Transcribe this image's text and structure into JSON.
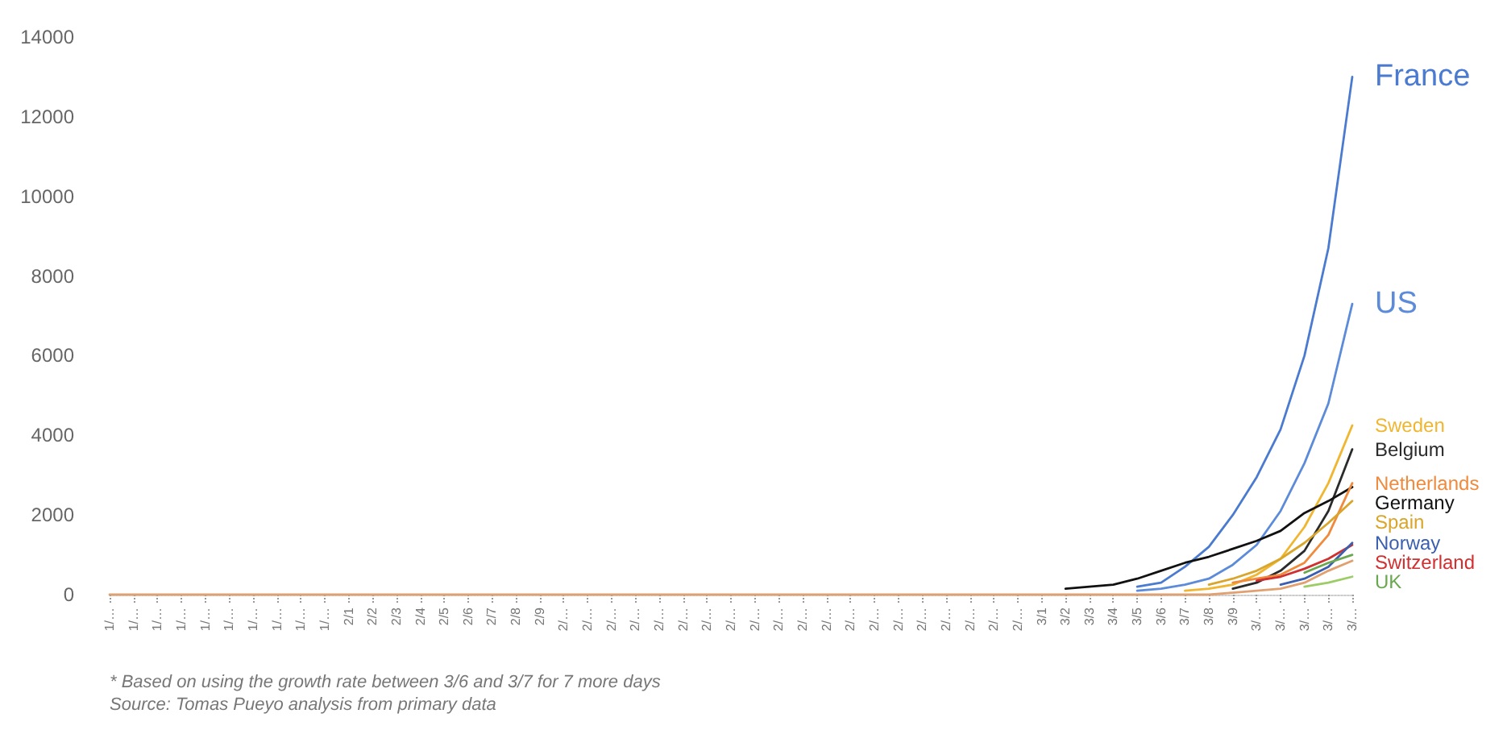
{
  "chart_data": {
    "type": "line",
    "categories": [
      "1/…",
      "1/…",
      "1/…",
      "1/…",
      "1/…",
      "1/…",
      "1/…",
      "1/…",
      "1/…",
      "1/…",
      "2/1",
      "2/2",
      "2/3",
      "2/4",
      "2/5",
      "2/6",
      "2/7",
      "2/8",
      "2/9",
      "2/…",
      "2/…",
      "2/…",
      "2/…",
      "2/…",
      "2/…",
      "2/…",
      "2/…",
      "2/…",
      "2/…",
      "2/…",
      "2/…",
      "2/…",
      "2/…",
      "2/…",
      "2/…",
      "2/…",
      "2/…",
      "2/…",
      "2/…",
      "3/1",
      "3/2",
      "3/3",
      "3/4",
      "3/5",
      "3/6",
      "3/7",
      "3/8",
      "3/9",
      "3/…",
      "3/…",
      "3/…",
      "3/…",
      "3/…"
    ],
    "ylim": [
      0,
      14000
    ],
    "yticks": [
      0,
      2000,
      4000,
      6000,
      8000,
      10000,
      12000,
      14000
    ],
    "grid": false,
    "legend": false,
    "marker": "none",
    "line_style": "solid",
    "annotations": [
      "* Based on using the growth rate between 3/6 and 3/7 for 7 more days",
      "Source: Tomas Pueyo analysis from primary data"
    ],
    "series": [
      {
        "name": "France",
        "color": "#4a7bd0",
        "values": [
          null,
          null,
          null,
          null,
          null,
          null,
          null,
          null,
          null,
          null,
          null,
          null,
          null,
          null,
          null,
          null,
          null,
          null,
          null,
          null,
          null,
          null,
          null,
          null,
          null,
          null,
          null,
          null,
          null,
          null,
          null,
          null,
          null,
          null,
          null,
          null,
          null,
          null,
          null,
          null,
          null,
          null,
          null,
          200,
          300,
          700,
          1200,
          2000,
          2950,
          4150,
          6000,
          8700,
          13000
        ]
      },
      {
        "name": "US",
        "color": "#5b8bd9",
        "values": [
          null,
          null,
          null,
          null,
          null,
          null,
          null,
          null,
          null,
          null,
          null,
          null,
          null,
          null,
          null,
          null,
          null,
          null,
          null,
          null,
          null,
          null,
          null,
          null,
          null,
          null,
          null,
          null,
          null,
          null,
          null,
          null,
          null,
          null,
          null,
          null,
          null,
          null,
          null,
          null,
          null,
          null,
          null,
          100,
          150,
          250,
          400,
          750,
          1250,
          2100,
          3300,
          4800,
          7300
        ]
      },
      {
        "name": "Sweden",
        "color": "#f0b630",
        "values": [
          null,
          null,
          null,
          null,
          null,
          null,
          null,
          null,
          null,
          null,
          null,
          null,
          null,
          null,
          null,
          null,
          null,
          null,
          null,
          null,
          null,
          null,
          null,
          null,
          null,
          null,
          null,
          null,
          null,
          null,
          null,
          null,
          null,
          null,
          null,
          null,
          null,
          null,
          null,
          null,
          null,
          null,
          null,
          null,
          null,
          100,
          150,
          250,
          500,
          900,
          1700,
          2800,
          4250
        ]
      },
      {
        "name": "Belgium",
        "color": "#2b2b2b",
        "values": [
          null,
          null,
          null,
          null,
          null,
          null,
          null,
          null,
          null,
          null,
          null,
          null,
          null,
          null,
          null,
          null,
          null,
          null,
          null,
          null,
          null,
          null,
          null,
          null,
          null,
          null,
          null,
          null,
          null,
          null,
          null,
          null,
          null,
          null,
          null,
          null,
          null,
          null,
          null,
          null,
          null,
          null,
          null,
          null,
          null,
          null,
          null,
          150,
          300,
          600,
          1100,
          2100,
          3650
        ]
      },
      {
        "name": "Germany",
        "color": "#111111",
        "values": [
          null,
          null,
          null,
          null,
          null,
          null,
          null,
          null,
          null,
          null,
          null,
          null,
          null,
          null,
          null,
          null,
          null,
          null,
          null,
          null,
          null,
          null,
          null,
          null,
          null,
          null,
          null,
          null,
          null,
          null,
          null,
          null,
          null,
          null,
          null,
          null,
          null,
          null,
          null,
          null,
          150,
          200,
          250,
          400,
          600,
          800,
          950,
          1150,
          1350,
          1600,
          2050,
          2350,
          2700
        ]
      },
      {
        "name": "Netherlands",
        "color": "#f08a3c",
        "values": [
          null,
          null,
          null,
          null,
          null,
          null,
          null,
          null,
          null,
          null,
          null,
          null,
          null,
          null,
          null,
          null,
          null,
          null,
          null,
          null,
          null,
          null,
          null,
          null,
          null,
          null,
          null,
          null,
          null,
          null,
          null,
          null,
          null,
          null,
          null,
          null,
          null,
          null,
          null,
          null,
          null,
          null,
          null,
          null,
          null,
          null,
          null,
          300,
          400,
          500,
          800,
          1500,
          2800
        ]
      },
      {
        "name": "Spain",
        "color": "#d9a52a",
        "values": [
          null,
          null,
          null,
          null,
          null,
          null,
          null,
          null,
          null,
          null,
          null,
          null,
          null,
          null,
          null,
          null,
          null,
          null,
          null,
          null,
          null,
          null,
          null,
          null,
          null,
          null,
          null,
          null,
          null,
          null,
          null,
          null,
          null,
          null,
          null,
          null,
          null,
          null,
          null,
          null,
          null,
          null,
          null,
          null,
          null,
          null,
          250,
          400,
          600,
          900,
          1300,
          1800,
          2350
        ]
      },
      {
        "name": "Switzerland",
        "color": "#d03030",
        "values": [
          null,
          null,
          null,
          null,
          null,
          null,
          null,
          null,
          null,
          null,
          null,
          null,
          null,
          null,
          null,
          null,
          null,
          null,
          null,
          null,
          null,
          null,
          null,
          null,
          null,
          null,
          null,
          null,
          null,
          null,
          null,
          null,
          null,
          null,
          null,
          null,
          null,
          null,
          null,
          null,
          null,
          null,
          null,
          null,
          null,
          null,
          null,
          null,
          350,
          450,
          650,
          900,
          1250
        ]
      },
      {
        "name": "Norway",
        "color": "#3a5fb0",
        "values": [
          null,
          null,
          null,
          null,
          null,
          null,
          null,
          null,
          null,
          null,
          null,
          null,
          null,
          null,
          null,
          null,
          null,
          null,
          null,
          null,
          null,
          null,
          null,
          null,
          null,
          null,
          null,
          null,
          null,
          null,
          null,
          null,
          null,
          null,
          null,
          null,
          null,
          null,
          null,
          null,
          null,
          null,
          null,
          null,
          null,
          null,
          null,
          null,
          null,
          250,
          400,
          700,
          1300
        ]
      },
      {
        "name": "UK",
        "color": "#6aa84f",
        "values": [
          null,
          null,
          null,
          null,
          null,
          null,
          null,
          null,
          null,
          null,
          null,
          null,
          null,
          null,
          null,
          null,
          null,
          null,
          null,
          null,
          null,
          null,
          null,
          null,
          null,
          null,
          null,
          null,
          null,
          null,
          null,
          null,
          null,
          null,
          null,
          null,
          null,
          null,
          null,
          null,
          null,
          null,
          null,
          null,
          null,
          null,
          null,
          null,
          null,
          null,
          550,
          800,
          1000
        ]
      },
      {
        "color": "#9ccc65",
        "values": [
          null,
          null,
          null,
          null,
          null,
          null,
          null,
          null,
          null,
          null,
          null,
          null,
          null,
          null,
          null,
          null,
          null,
          null,
          null,
          null,
          null,
          null,
          null,
          null,
          null,
          null,
          null,
          null,
          null,
          null,
          null,
          null,
          null,
          null,
          null,
          null,
          null,
          null,
          null,
          null,
          null,
          null,
          null,
          null,
          null,
          null,
          null,
          null,
          null,
          null,
          200,
          300,
          450
        ]
      },
      {
        "color": "#e0a070",
        "values": [
          0,
          0,
          0,
          0,
          0,
          0,
          0,
          0,
          0,
          0,
          0,
          0,
          0,
          0,
          0,
          0,
          0,
          0,
          0,
          0,
          0,
          0,
          0,
          0,
          0,
          0,
          0,
          0,
          0,
          0,
          0,
          0,
          0,
          0,
          0,
          0,
          0,
          0,
          0,
          0,
          0,
          0,
          0,
          0,
          0,
          0,
          0,
          50,
          100,
          150,
          300,
          600,
          850
        ]
      }
    ]
  }
}
